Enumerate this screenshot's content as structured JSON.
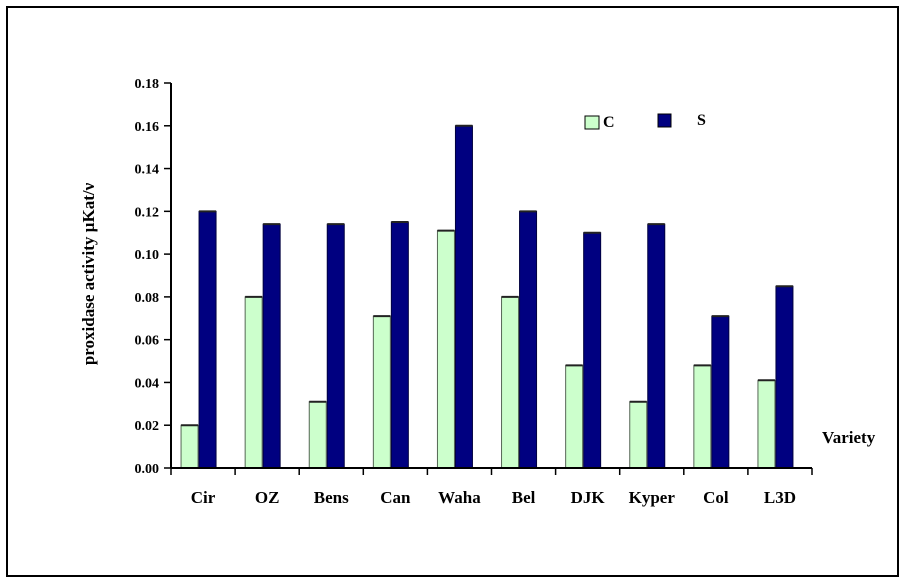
{
  "chart_data": {
    "type": "bar",
    "title": "",
    "xlabel": "Variety",
    "ylabel": "proxidase activity µKat/ν",
    "ylim": [
      0,
      0.18
    ],
    "yticks": [
      "0.00",
      "0.02",
      "0.04",
      "0.06",
      "0.08",
      "0.10",
      "0.12",
      "0.14",
      "0.16",
      "0.18"
    ],
    "categories": [
      "Cir",
      "OZ",
      "Bens",
      "Can",
      "Waha",
      "Bel",
      "DJK",
      "Kyper",
      "Col",
      "L3D"
    ],
    "series": [
      {
        "name": "C",
        "color": "#ccffcc",
        "values": [
          0.02,
          0.08,
          0.031,
          0.071,
          0.111,
          0.08,
          0.048,
          0.031,
          0.048,
          0.041
        ]
      },
      {
        "name": "S",
        "color": "#000080",
        "values": [
          0.12,
          0.114,
          0.114,
          0.115,
          0.16,
          0.12,
          0.11,
          0.114,
          0.071,
          0.085
        ]
      }
    ],
    "legend_position": "top-right",
    "grid": false
  }
}
